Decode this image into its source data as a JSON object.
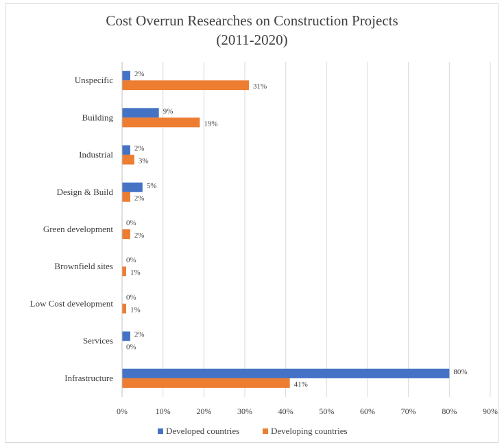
{
  "chart_data": {
    "type": "bar",
    "orientation": "horizontal",
    "title": [
      "Cost Overrun Researches on Construction Projects",
      "(2011-2020)"
    ],
    "categories": [
      "Unspecific",
      "Building",
      "Industrial",
      "Design & Build",
      "Green development",
      "Brownfield sites",
      "Low Cost development",
      "Services",
      "Infrastructure"
    ],
    "series": [
      {
        "name": "Developed countries",
        "color": "#4472C4",
        "values": [
          2,
          9,
          2,
          5,
          0,
          0,
          0,
          2,
          80
        ],
        "labels": [
          "2%",
          "9%",
          "2%",
          "5%",
          "0%",
          "0%",
          "0%",
          "2%",
          "80%"
        ]
      },
      {
        "name": "Developing countries",
        "color": "#ED7D31",
        "values": [
          31,
          19,
          3,
          2,
          2,
          1,
          1,
          0,
          41
        ],
        "labels": [
          "31%",
          "19%",
          "3%",
          "2%",
          "2%",
          "1%",
          "1%",
          "0%",
          "41%"
        ]
      }
    ],
    "xlim": [
      0,
      90
    ],
    "x_ticks": [
      "0%",
      "10%",
      "20%",
      "30%",
      "40%",
      "50%",
      "60%",
      "70%",
      "80%",
      "90%"
    ],
    "grid": "vertical",
    "legend": "bottom"
  }
}
